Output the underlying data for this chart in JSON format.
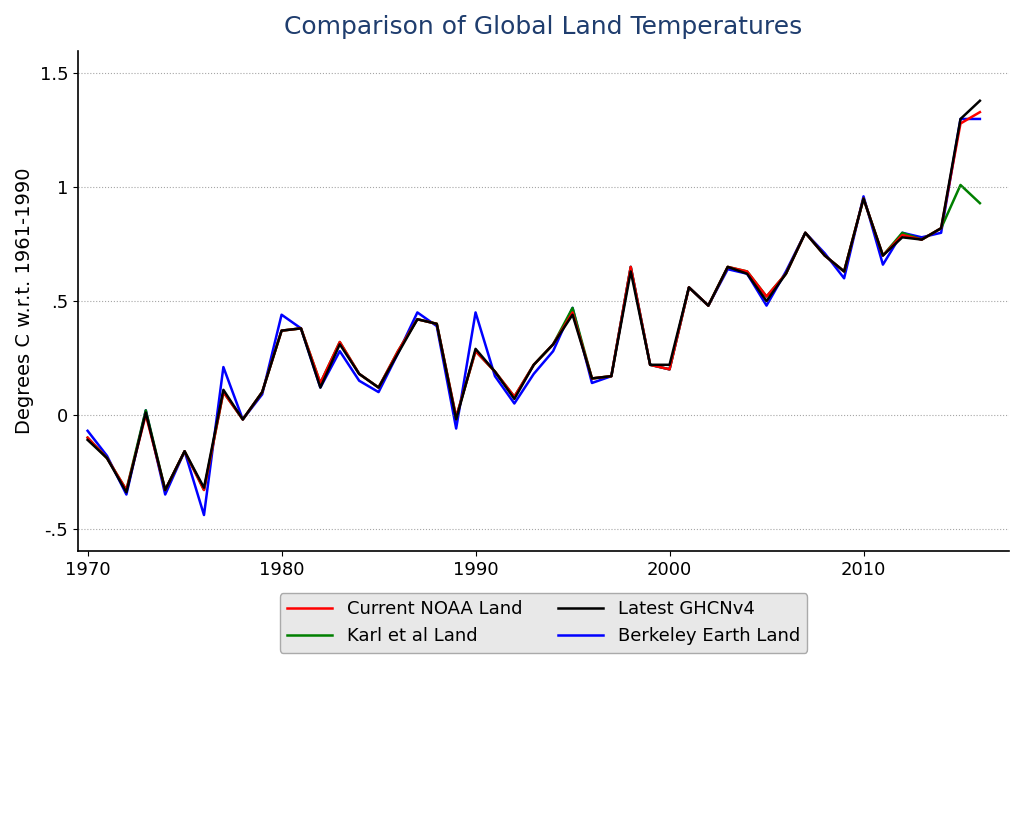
{
  "title": "Comparison of Global Land Temperatures",
  "ylabel": "Degrees C w.r.t. 1961-1990",
  "xlim": [
    1969.5,
    2017.5
  ],
  "ylim": [
    -0.6,
    1.6
  ],
  "yticks": [
    -0.5,
    0.0,
    0.5,
    1.0,
    1.5
  ],
  "xticks": [
    1970,
    1980,
    1990,
    2000,
    2010
  ],
  "title_color": "#1f3d6e",
  "title_fontsize": 18,
  "label_fontsize": 14,
  "tick_fontsize": 13,
  "legend_fontsize": 13,
  "years": [
    1970,
    1971,
    1972,
    1973,
    1974,
    1975,
    1976,
    1977,
    1978,
    1979,
    1980,
    1981,
    1982,
    1983,
    1984,
    1985,
    1986,
    1987,
    1988,
    1989,
    1990,
    1991,
    1992,
    1993,
    1994,
    1995,
    1996,
    1997,
    1998,
    1999,
    2000,
    2001,
    2002,
    2003,
    2004,
    2005,
    2006,
    2007,
    2008,
    2009,
    2010,
    2011,
    2012,
    2013,
    2014,
    2015,
    2016
  ],
  "noaa": [
    -0.1,
    -0.19,
    -0.33,
    0.0,
    -0.33,
    -0.16,
    -0.33,
    0.1,
    -0.02,
    0.1,
    0.37,
    0.38,
    0.14,
    0.32,
    0.18,
    0.12,
    0.28,
    0.42,
    0.4,
    -0.01,
    0.28,
    0.19,
    0.08,
    0.22,
    0.31,
    0.45,
    0.16,
    0.17,
    0.65,
    0.22,
    0.2,
    0.56,
    0.48,
    0.65,
    0.63,
    0.52,
    0.62,
    0.8,
    0.7,
    0.63,
    0.95,
    0.7,
    0.79,
    0.77,
    0.82,
    1.28,
    1.33
  ],
  "karl": [
    -0.1,
    -0.19,
    -0.33,
    0.02,
    -0.33,
    -0.16,
    -0.33,
    0.1,
    -0.02,
    0.1,
    0.37,
    0.38,
    0.14,
    0.32,
    0.18,
    0.12,
    0.28,
    0.42,
    0.4,
    -0.01,
    0.28,
    0.19,
    0.08,
    0.22,
    0.31,
    0.47,
    0.16,
    0.17,
    0.65,
    0.22,
    0.2,
    0.56,
    0.48,
    0.65,
    0.63,
    0.52,
    0.62,
    0.8,
    0.7,
    0.63,
    0.95,
    0.7,
    0.8,
    0.77,
    0.82,
    1.01,
    0.93
  ],
  "ghcnv4": [
    -0.11,
    -0.19,
    -0.34,
    0.01,
    -0.33,
    -0.16,
    -0.32,
    0.11,
    -0.02,
    0.1,
    0.37,
    0.38,
    0.12,
    0.31,
    0.18,
    0.12,
    0.27,
    0.42,
    0.4,
    -0.02,
    0.29,
    0.19,
    0.07,
    0.22,
    0.31,
    0.44,
    0.16,
    0.17,
    0.63,
    0.22,
    0.22,
    0.56,
    0.48,
    0.65,
    0.62,
    0.5,
    0.62,
    0.8,
    0.7,
    0.63,
    0.95,
    0.7,
    0.78,
    0.77,
    0.82,
    1.3,
    1.38
  ],
  "berkeley": [
    -0.07,
    -0.18,
    -0.35,
    0.02,
    -0.35,
    -0.16,
    -0.44,
    0.21,
    -0.02,
    0.09,
    0.44,
    0.38,
    0.12,
    0.28,
    0.15,
    0.1,
    0.27,
    0.45,
    0.39,
    -0.06,
    0.45,
    0.17,
    0.05,
    0.18,
    0.28,
    0.47,
    0.14,
    0.17,
    0.65,
    0.22,
    0.2,
    0.56,
    0.48,
    0.64,
    0.62,
    0.48,
    0.63,
    0.8,
    0.71,
    0.6,
    0.96,
    0.66,
    0.8,
    0.78,
    0.8,
    1.3,
    1.3
  ],
  "noaa_color": "#ff0000",
  "karl_color": "#008000",
  "ghcnv4_color": "#000000",
  "berkeley_color": "#0000ff",
  "line_width": 1.8,
  "background_color": "#ffffff",
  "legend_bg": "#e8e8e8"
}
